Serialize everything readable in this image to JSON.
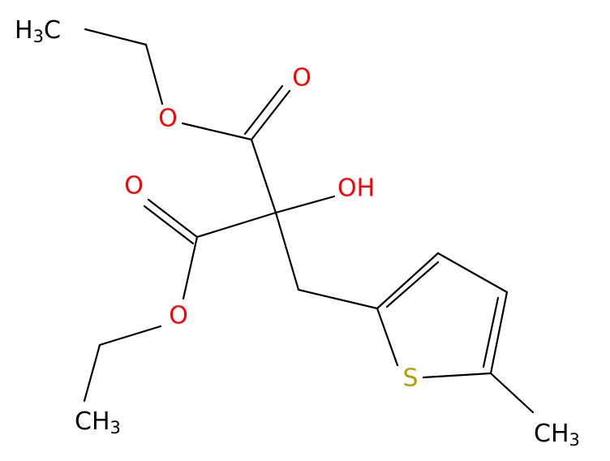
{
  "atoms": [
    {
      "parts": [
        "H",
        "3",
        "C"
      ],
      "color": "#000000"
    },
    {
      "label": "O",
      "color": "#ff0000"
    },
    {
      "label": "O",
      "color": "#ff0000"
    },
    {
      "label": "OH",
      "color": "#ff0000"
    },
    {
      "label": "O",
      "color": "#ff0000"
    },
    {
      "label": "O",
      "color": "#ff0000"
    },
    {
      "parts": [
        "CH",
        "3"
      ],
      "color": "#000000"
    },
    {
      "label": "S",
      "color": "#b8a000"
    },
    {
      "parts": [
        "CH",
        "3"
      ],
      "color": "#000000"
    }
  ]
}
